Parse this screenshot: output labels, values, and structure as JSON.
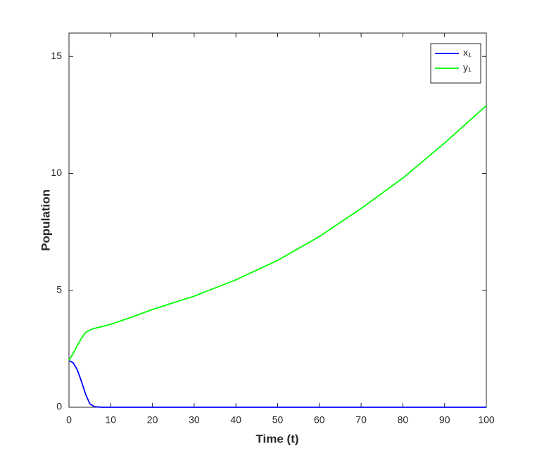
{
  "chart_data": {
    "type": "line",
    "xlabel": "Time (t)",
    "ylabel": "Population",
    "x": [
      0,
      1,
      2,
      3,
      4,
      5,
      6,
      7,
      8,
      10,
      15,
      20,
      30,
      40,
      50,
      60,
      70,
      80,
      90,
      100
    ],
    "series": [
      {
        "name": "x₁",
        "color": "#0000ff",
        "values": [
          2,
          1.9,
          1.6,
          1.1,
          0.55,
          0.15,
          0.03,
          0.01,
          0,
          0,
          0,
          0,
          0,
          0,
          0,
          0,
          0,
          0,
          0,
          0
        ]
      },
      {
        "name": "y₁",
        "color": "#00ff00",
        "values": [
          2,
          2.3,
          2.65,
          2.95,
          3.2,
          3.3,
          3.37,
          3.41,
          3.45,
          3.55,
          3.85,
          4.18,
          4.75,
          5.45,
          6.28,
          7.3,
          8.5,
          9.8,
          11.3,
          12.9
        ]
      }
    ],
    "xlim": [
      0,
      100
    ],
    "xticks": [
      0,
      10,
      20,
      30,
      40,
      50,
      60,
      70,
      80,
      90,
      100
    ],
    "ylim": [
      0,
      16
    ],
    "yticks": [
      0,
      5,
      10,
      15
    ],
    "grid": false,
    "legend": "top-right"
  }
}
